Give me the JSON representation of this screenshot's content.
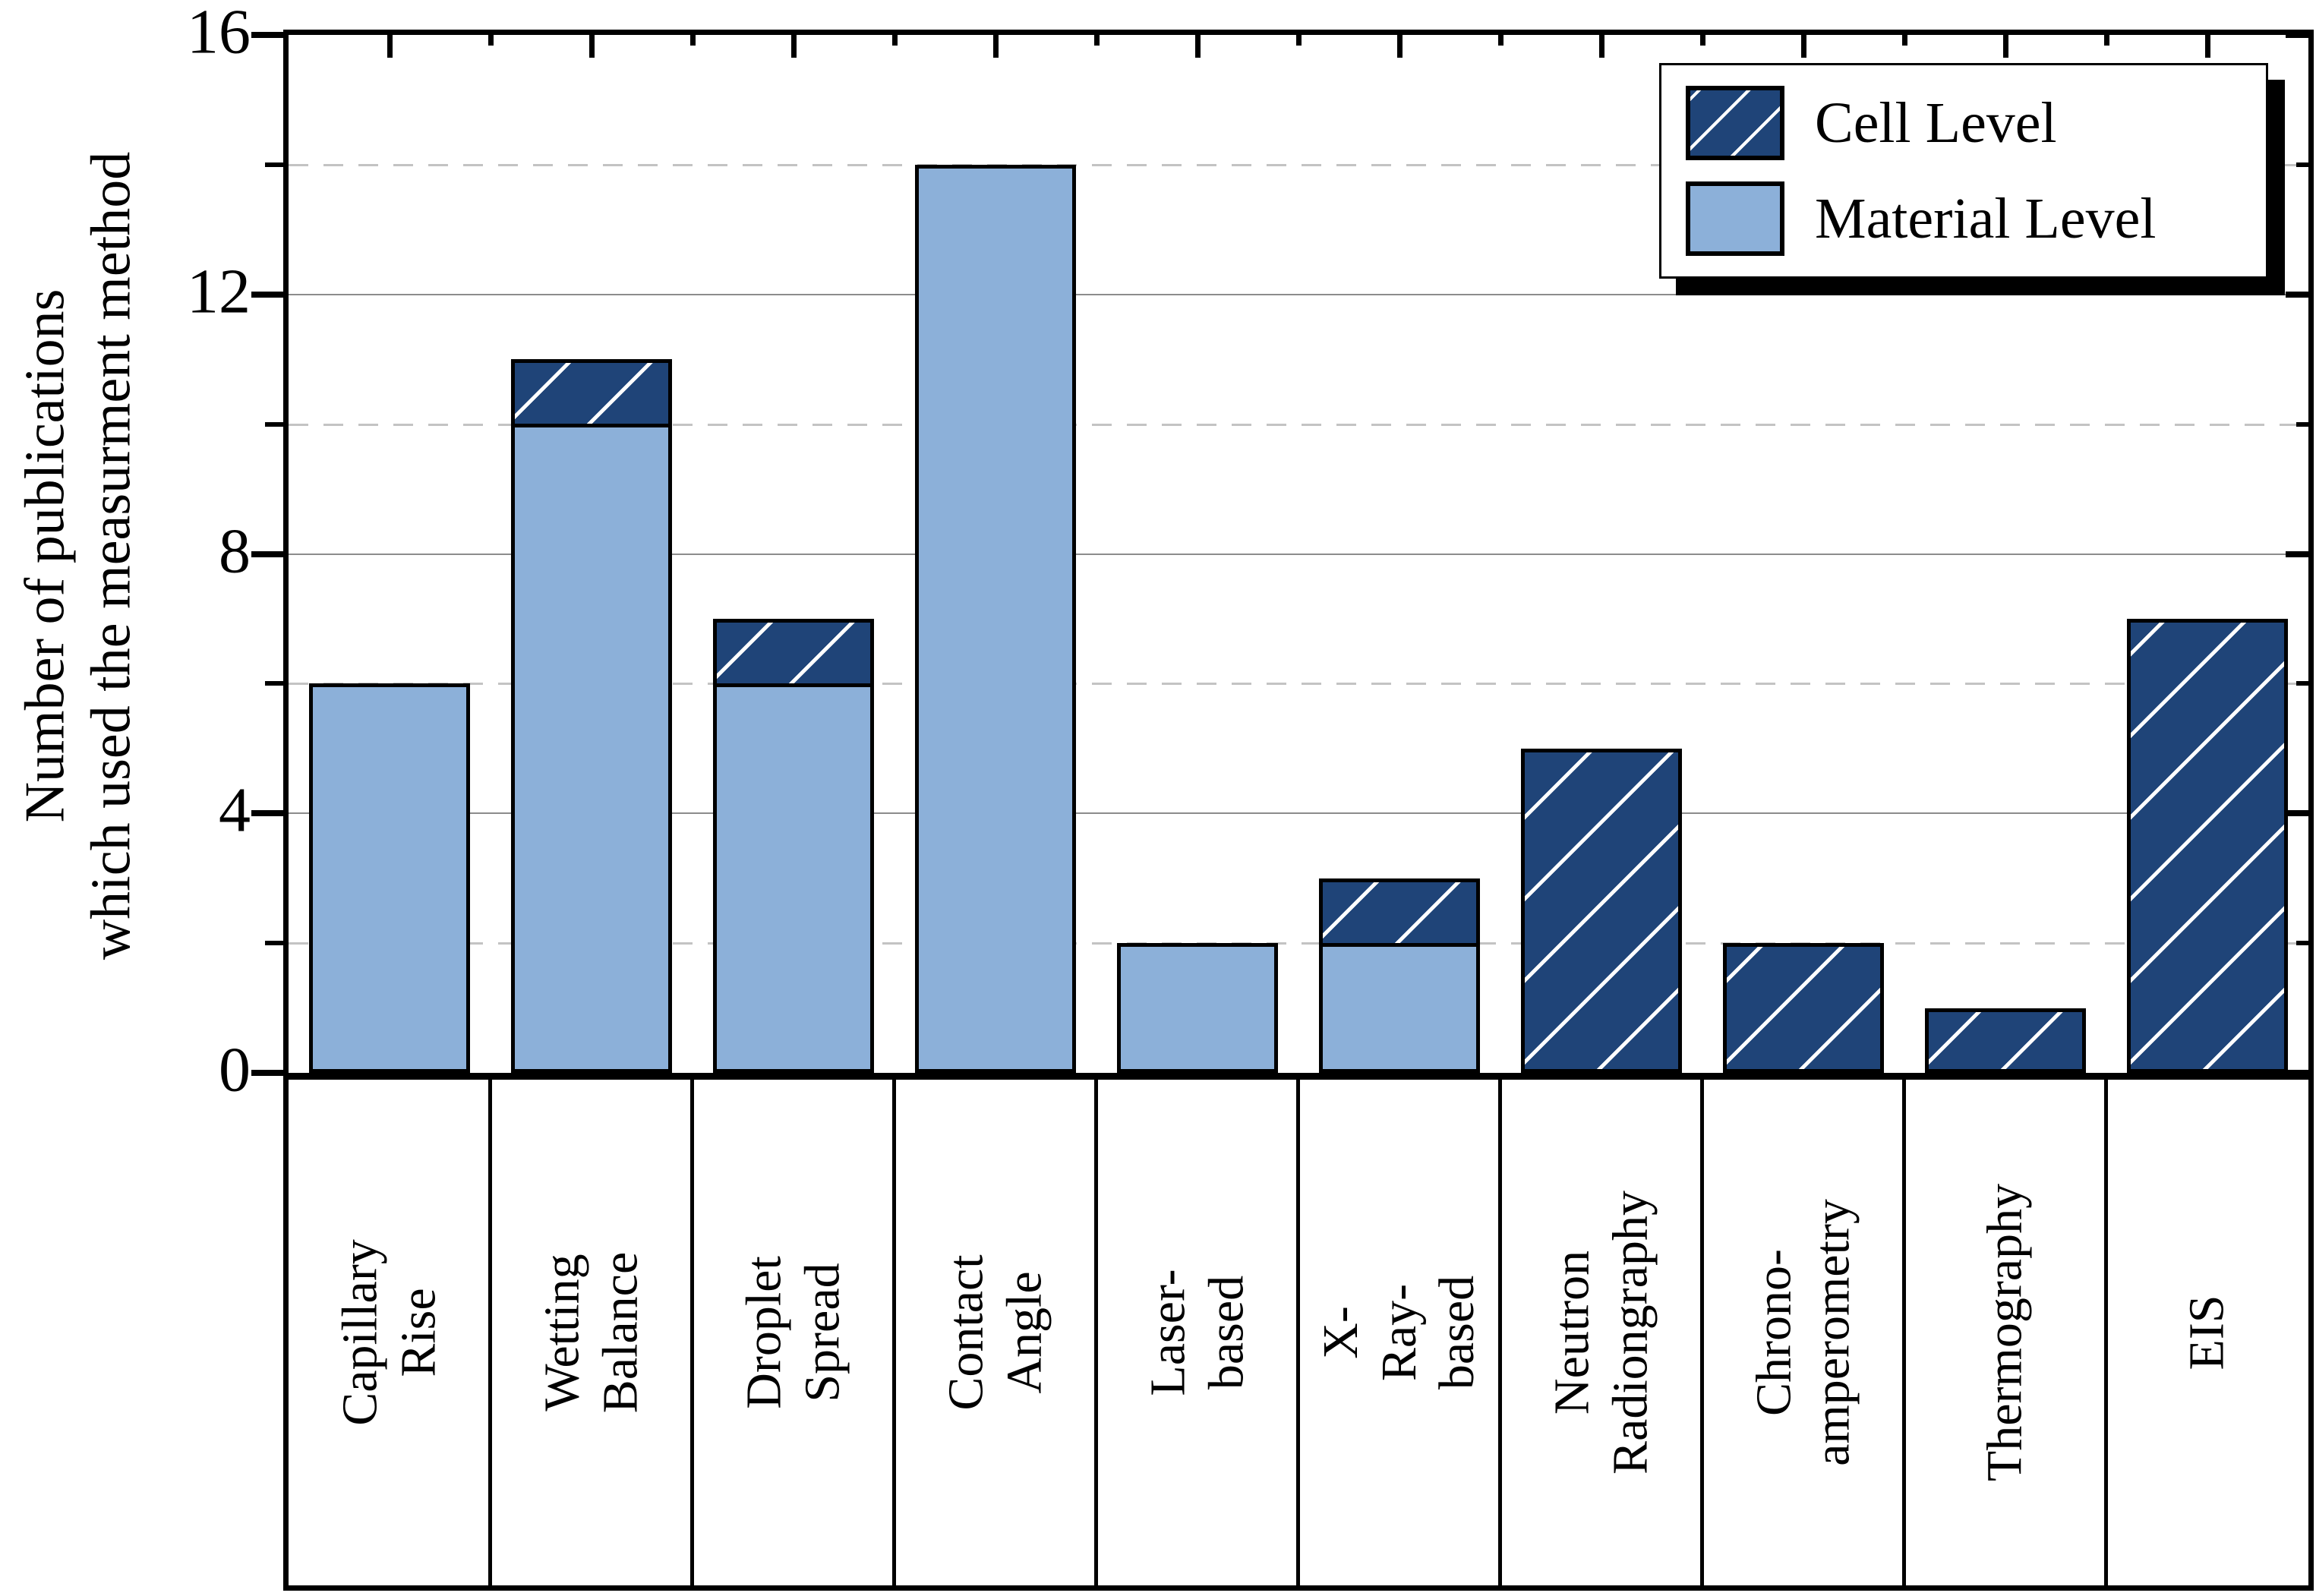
{
  "figure": {
    "background": "#FFFFFF",
    "frame_color": "#000000"
  },
  "chart_data": {
    "type": "bar",
    "stacked": true,
    "orientation": "vertical",
    "title": "",
    "xlabel": "",
    "ylabel": "Number of publications\nwhich used the measurment method",
    "categories": [
      "Capillary Rise",
      "Wetting Balance",
      "Droplet Spread",
      "Contact Angle",
      "Laser-based",
      "X-Ray-based",
      "Neutron\nRadiongraphy",
      "Chrono-\namperometry",
      "Thermography",
      "EIS"
    ],
    "series": [
      {
        "name": "Material Level",
        "values": [
          6,
          10,
          6,
          14,
          2,
          2,
          0,
          0,
          0,
          0
        ],
        "color": "#8CB0D9",
        "hatch": "none"
      },
      {
        "name": "Cell Level",
        "values": [
          0,
          1,
          1,
          0,
          0,
          1,
          5,
          2,
          1,
          7
        ],
        "color": "#1F4478",
        "hatch": "/",
        "hatch_color": "#FFFFFF"
      }
    ],
    "bar_outline_color": "#000000",
    "ylim": [
      0,
      16
    ],
    "yticks_major": [
      0,
      4,
      8,
      12,
      16
    ],
    "ytick_labels": [
      "0",
      "4",
      "8",
      "12",
      "16"
    ],
    "yticks_minor": [
      2,
      6,
      10,
      14
    ],
    "grid": {
      "major_style": "solid",
      "major_color": "#8C8C8C",
      "minor_style": "dashed",
      "minor_color": "#C3C3C3"
    },
    "legend": {
      "position": "top-right",
      "entries": [
        {
          "label": "Cell Level",
          "color": "#1F4478",
          "hatch": "/",
          "hatch_color": "#FFFFFF"
        },
        {
          "label": "Material Level",
          "color": "#8CB0D9",
          "hatch": "none"
        }
      ]
    }
  }
}
